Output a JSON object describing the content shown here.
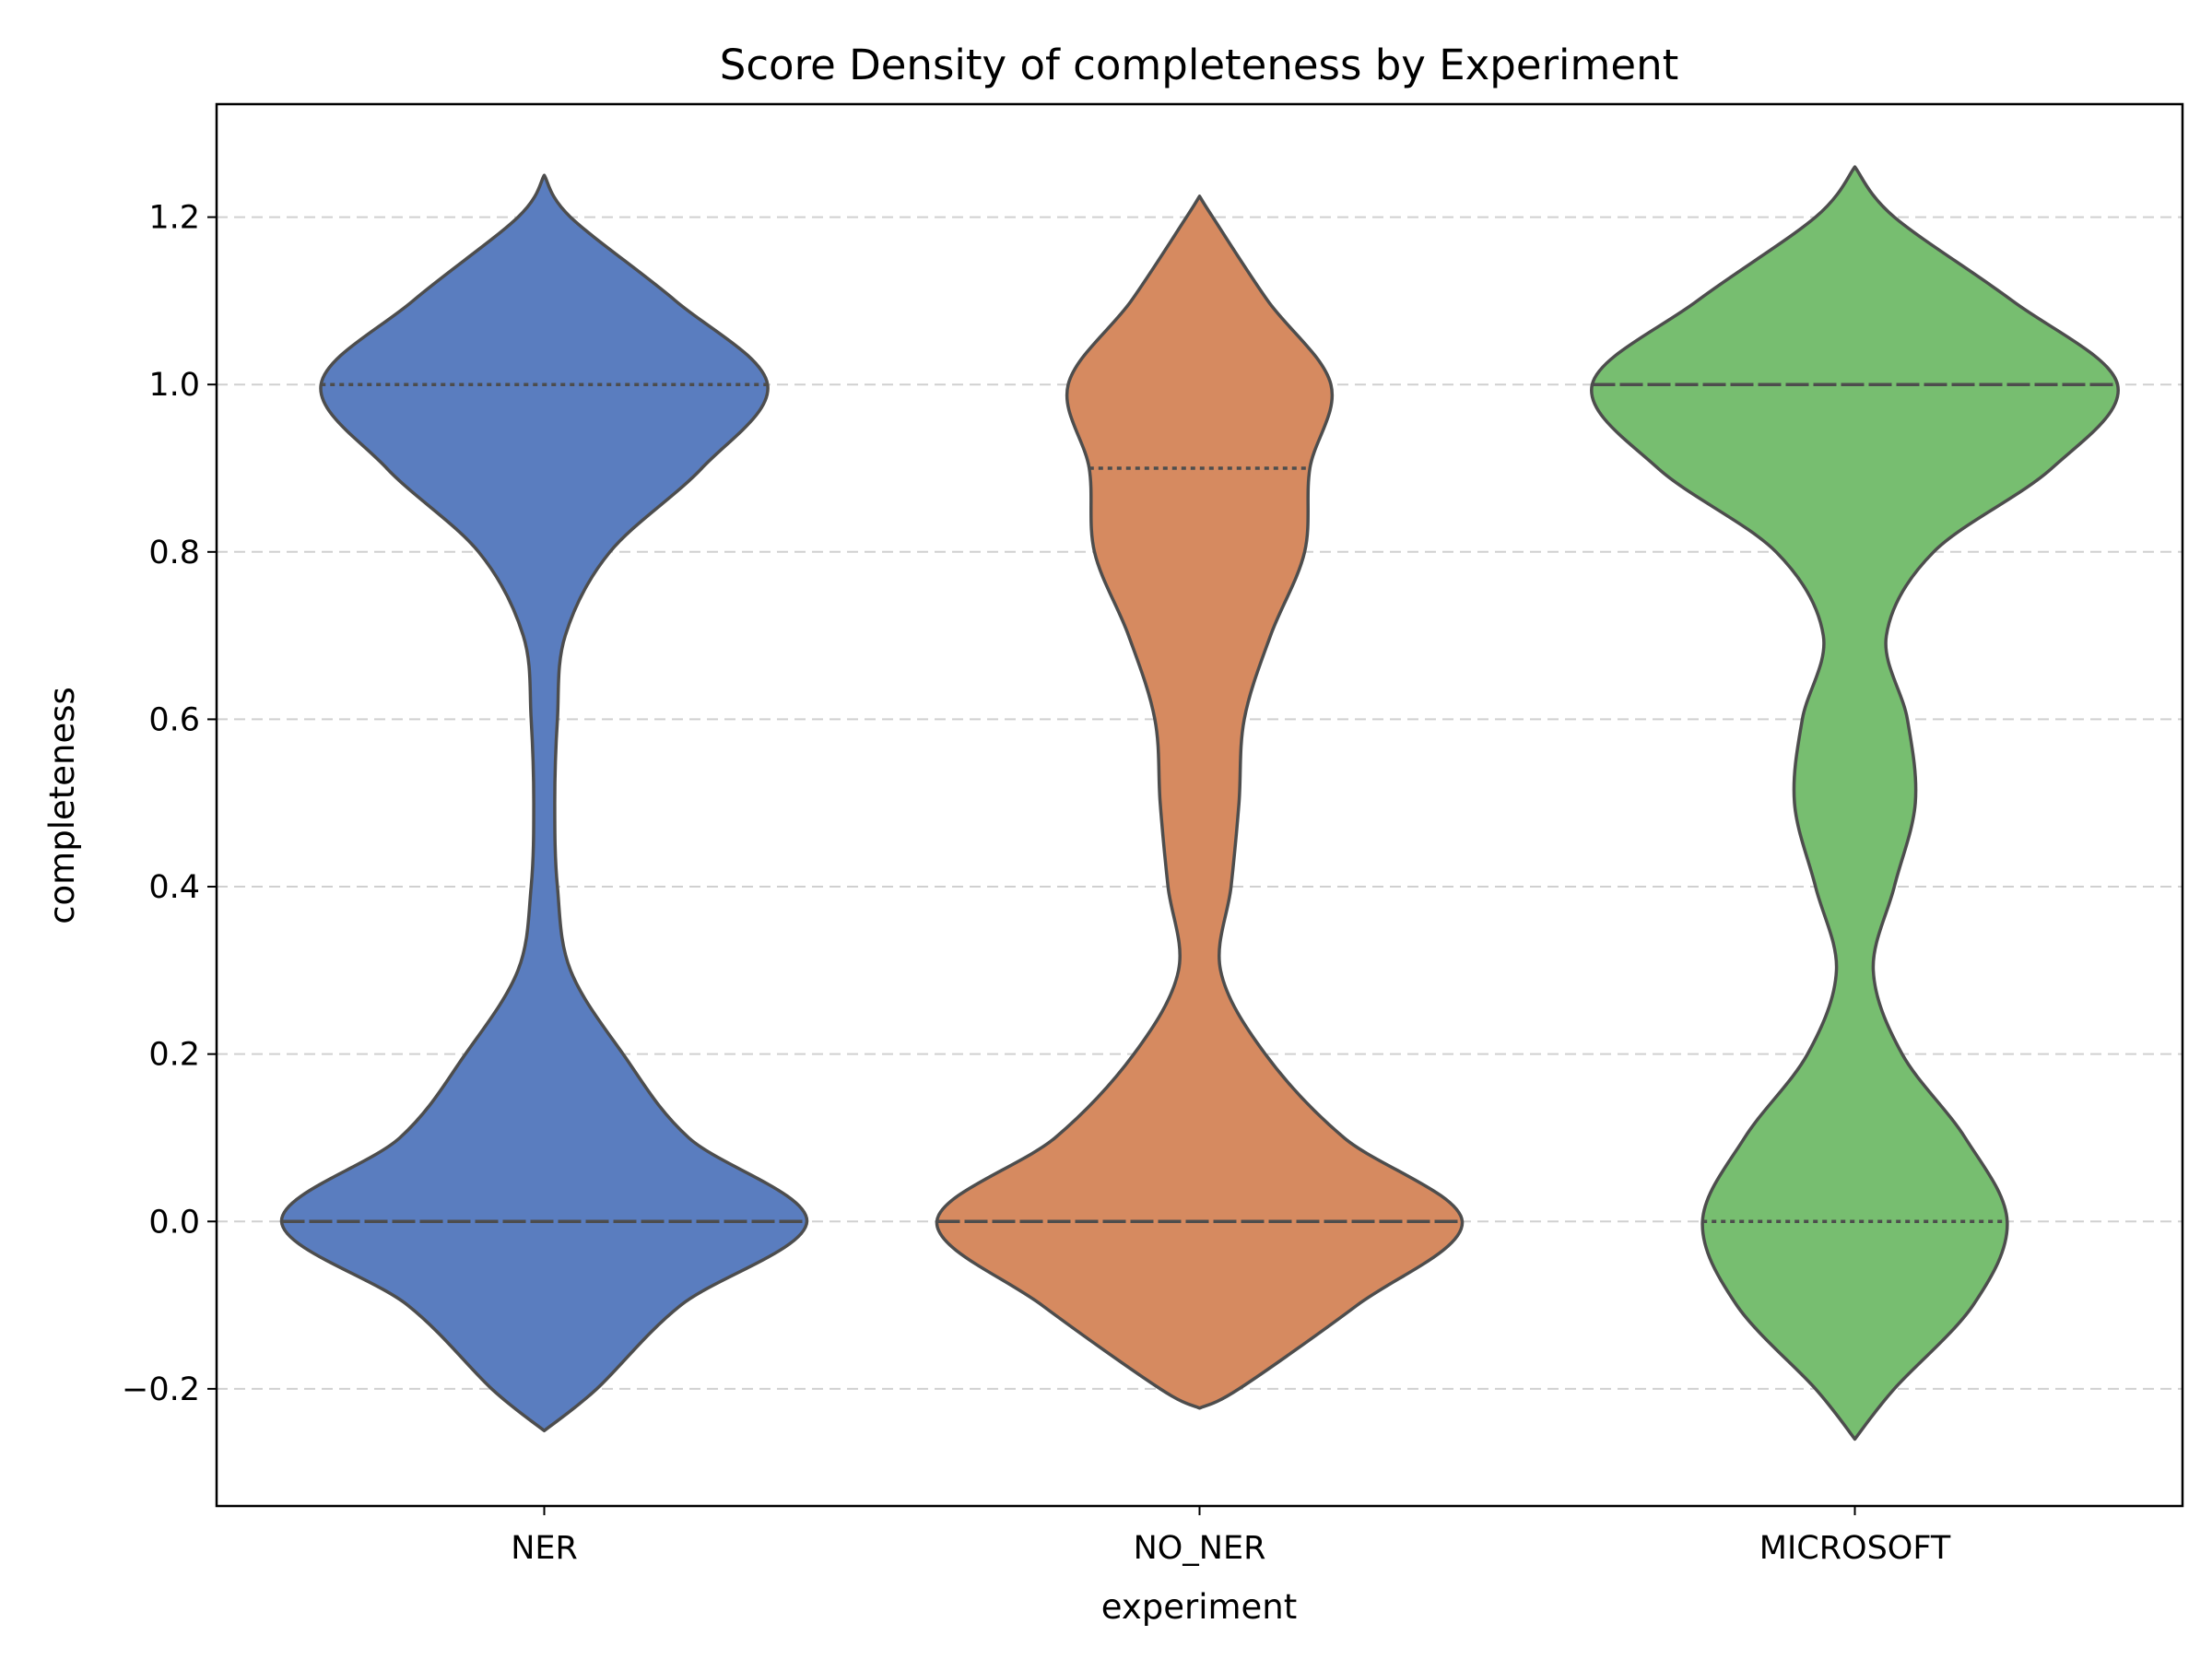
{
  "chart_data": {
    "type": "violin",
    "title": "Score Density of completeness by Experiment",
    "xlabel": "experiment",
    "ylabel": "completeness",
    "ylim": [
      -0.34,
      1.335
    ],
    "yticks": [
      -0.2,
      0.0,
      0.2,
      0.4,
      0.6,
      0.8,
      1.0,
      1.2
    ],
    "ytick_labels": [
      "−0.2",
      "0.0",
      "0.2",
      "0.4",
      "0.6",
      "0.8",
      "1.0",
      "1.2"
    ],
    "grid": {
      "y": true,
      "style": "dashed"
    },
    "categories": [
      "NER",
      "NO_NER",
      "MICROSOFT"
    ],
    "series": [
      {
        "category": "NER",
        "color": "#5a7dbf",
        "quartiles": {
          "q1": 0.0,
          "median": 0.0,
          "q3": 1.0
        },
        "range": [
          -0.25,
          1.25
        ],
        "density_profile": [
          [
            -0.25,
            0.0
          ],
          [
            -0.2,
            0.2
          ],
          [
            -0.1,
            0.52
          ],
          [
            0.0,
            1.0
          ],
          [
            0.1,
            0.55
          ],
          [
            0.2,
            0.3
          ],
          [
            0.3,
            0.1
          ],
          [
            0.4,
            0.05
          ],
          [
            0.5,
            0.04
          ],
          [
            0.6,
            0.05
          ],
          [
            0.7,
            0.08
          ],
          [
            0.8,
            0.25
          ],
          [
            0.9,
            0.6
          ],
          [
            1.0,
            0.85
          ],
          [
            1.1,
            0.5
          ],
          [
            1.2,
            0.1
          ],
          [
            1.25,
            0.0
          ]
        ]
      },
      {
        "category": "NO_NER",
        "color": "#d68a60",
        "quartiles": {
          "q1": 0.0,
          "median": 0.0,
          "q3": 0.9
        },
        "range": [
          -0.223,
          1.225
        ],
        "density_profile": [
          [
            -0.223,
            0.0
          ],
          [
            -0.2,
            0.15
          ],
          [
            -0.1,
            0.6
          ],
          [
            0.0,
            1.0
          ],
          [
            0.1,
            0.55
          ],
          [
            0.2,
            0.25
          ],
          [
            0.3,
            0.08
          ],
          [
            0.4,
            0.12
          ],
          [
            0.5,
            0.15
          ],
          [
            0.6,
            0.17
          ],
          [
            0.7,
            0.27
          ],
          [
            0.8,
            0.4
          ],
          [
            0.9,
            0.42
          ],
          [
            1.0,
            0.5
          ],
          [
            1.1,
            0.26
          ],
          [
            1.2,
            0.05
          ],
          [
            1.225,
            0.0
          ]
        ]
      },
      {
        "category": "MICROSOFT",
        "color": "#77be70",
        "quartiles": {
          "q1": 0.0,
          "median": 1.0,
          "q3": 1.0
        },
        "range": [
          -0.26,
          1.26
        ],
        "density_profile": [
          [
            -0.26,
            0.0
          ],
          [
            -0.2,
            0.15
          ],
          [
            -0.1,
            0.45
          ],
          [
            0.0,
            0.58
          ],
          [
            0.1,
            0.42
          ],
          [
            0.2,
            0.18
          ],
          [
            0.3,
            0.07
          ],
          [
            0.4,
            0.15
          ],
          [
            0.5,
            0.23
          ],
          [
            0.6,
            0.2
          ],
          [
            0.7,
            0.12
          ],
          [
            0.8,
            0.3
          ],
          [
            0.9,
            0.75
          ],
          [
            1.0,
            1.0
          ],
          [
            1.1,
            0.6
          ],
          [
            1.2,
            0.15
          ],
          [
            1.26,
            0.0
          ]
        ]
      }
    ]
  }
}
